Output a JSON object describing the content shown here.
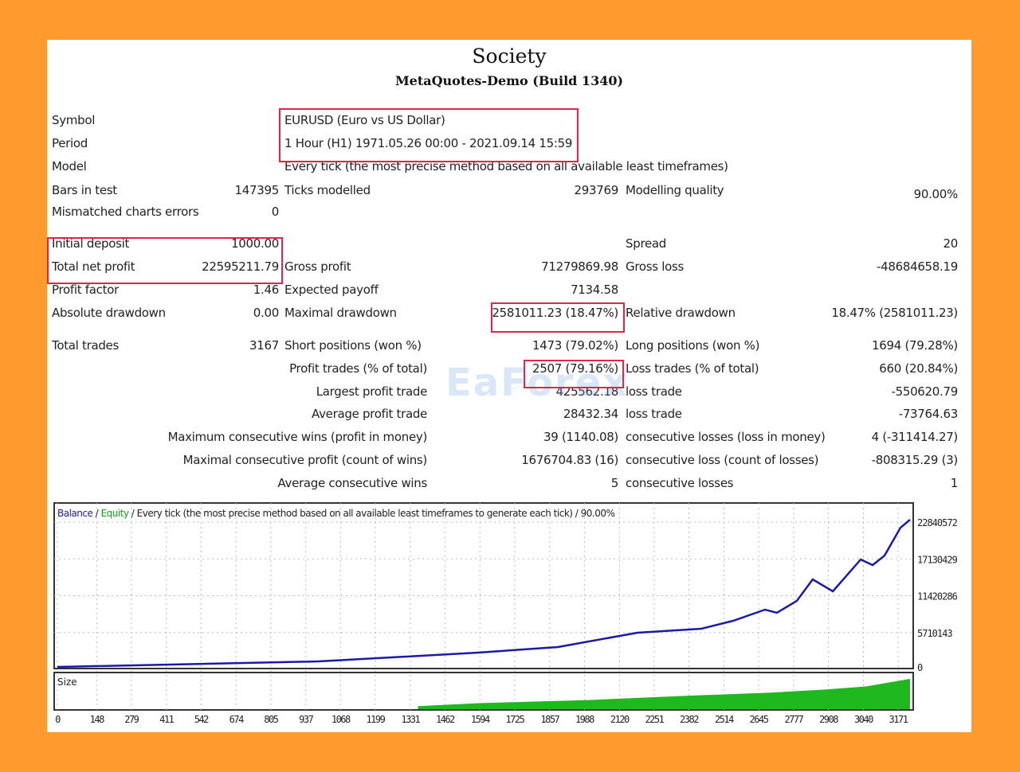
{
  "header": {
    "title": "Society",
    "subtitle": "MetaQuotes-Demo (Build 1340)"
  },
  "rows": [
    {
      "l1": "Symbol",
      "v1": "",
      "l2": "EURUSD (Euro vs US Dollar)",
      "v2": "",
      "l3": "",
      "v3": ""
    },
    {
      "l1": "Period",
      "v1": "",
      "l2": "1 Hour (H1) 1971.05.26 00:00 - 2021.09.14 15:59",
      "v2": "",
      "l3": "",
      "v3": ""
    },
    {
      "l1": "Model",
      "v1": "",
      "l2": "Every tick (the most precise method based on all available least timeframes)",
      "v2": "",
      "l3": "",
      "v3": ""
    },
    {
      "l1": "Bars in test",
      "v1": "147395",
      "l2": "Ticks modelled",
      "v2": "293769",
      "l3": "Modelling quality",
      "v3": "90.00%"
    },
    {
      "l1": "Mismatched charts errors",
      "v1": "0",
      "l2": "",
      "v2": "",
      "l3": "",
      "v3": ""
    },
    {
      "l1": "Initial deposit",
      "v1": "1000.00",
      "l2": "",
      "v2": "",
      "l3": "Spread",
      "v3": "20"
    },
    {
      "l1": "Total net profit",
      "v1": "22595211.79",
      "l2": "Gross profit",
      "v2": "71279869.98",
      "l3": "Gross loss",
      "v3": "-48684658.19"
    },
    {
      "l1": "Profit factor",
      "v1": "1.46",
      "l2": "Expected payoff",
      "v2": "7134.58",
      "l3": "",
      "v3": ""
    },
    {
      "l1": "Absolute drawdown",
      "v1": "0.00",
      "l2": "Maximal drawdown",
      "v2": "2581011.23 (18.47%)",
      "l3": "Relative drawdown",
      "v3": "18.47% (2581011.23)"
    },
    {
      "l1": "Total trades",
      "v1": "3167",
      "l2": "Short positions (won %)",
      "v2": "1473 (79.02%)",
      "l3": "Long positions (won %)",
      "v3": "1694 (79.28%)"
    },
    {
      "l1": "",
      "v1": "Profit trades (% of total)",
      "l2": "",
      "v2": "2507 (79.16%)",
      "l3": "Loss trades (% of total)",
      "v3": "660 (20.84%)"
    },
    {
      "l1": "",
      "v1": "Largest  profit trade",
      "l2": "",
      "v2": "425562.18",
      "l3": "loss trade",
      "v3": "-550620.79"
    },
    {
      "l1": "",
      "v1": "Average  profit trade",
      "l2": "",
      "v2": "28432.34",
      "l3": "loss trade",
      "v3": "-73764.63"
    },
    {
      "l1": "",
      "v1": "Maximum  consecutive wins (profit in money)",
      "l2": "",
      "v2": "39 (1140.08)",
      "l3": "consecutive losses (loss in money)",
      "v3": "4 (-311414.27)"
    },
    {
      "l1": "",
      "v1": "Maximal  consecutive profit (count of wins)",
      "l2": "",
      "v2": "1676704.83 (16)",
      "l3": "consecutive loss (count of losses)",
      "v3": "-808315.29 (3)"
    },
    {
      "l1": "",
      "v1": "Average  consecutive wins",
      "l2": "",
      "v2": "5",
      "l3": "consecutive losses",
      "v3": "1"
    }
  ],
  "watermark": "EaForex",
  "chart_data": {
    "type": "line",
    "legend": {
      "balance": "Balance",
      "sep1": " / ",
      "equity": "Equity",
      "rest": " / Every tick (the most precise method based on all available least timeframes to generate each tick) / 90.00%"
    },
    "colors": {
      "balance": "#1a1aa8",
      "equity": "#14a014",
      "size": "#1fb81f"
    },
    "size_label": "Size",
    "y_ticks": [
      "22840572",
      "17130429",
      "11420286",
      "5710143",
      "0"
    ],
    "ylim": [
      0,
      22840572
    ],
    "x_ticks": [
      "0",
      "148",
      "279",
      "411",
      "542",
      "674",
      "805",
      "937",
      "1068",
      "1199",
      "1331",
      "1462",
      "1594",
      "1725",
      "1857",
      "1988",
      "2120",
      "2251",
      "2382",
      "2514",
      "2645",
      "2777",
      "2908",
      "3040",
      "3171"
    ],
    "xlim": [
      0,
      3230
    ],
    "balance": [
      [
        0,
        1000
      ],
      [
        986,
        860000
      ],
      [
        1587,
        2220000
      ],
      [
        1888,
        3090000
      ],
      [
        2188,
        5310000
      ],
      [
        2429,
        5930000
      ],
      [
        2549,
        7160000
      ],
      [
        2669,
        8890000
      ],
      [
        2714,
        8400000
      ],
      [
        2789,
        10250000
      ],
      [
        2849,
        13580000
      ],
      [
        2925,
        11730000
      ],
      [
        3030,
        16670000
      ],
      [
        3075,
        15800000
      ],
      [
        3120,
        17280000
      ],
      [
        3180,
        21600000
      ],
      [
        3216,
        22840000
      ]
    ],
    "size": [
      [
        1360,
        0.1
      ],
      [
        1600,
        0.2
      ],
      [
        2000,
        0.3
      ],
      [
        2400,
        0.45
      ],
      [
        2700,
        0.55
      ],
      [
        2900,
        0.65
      ],
      [
        3050,
        0.75
      ],
      [
        3216,
        1.0
      ]
    ]
  }
}
